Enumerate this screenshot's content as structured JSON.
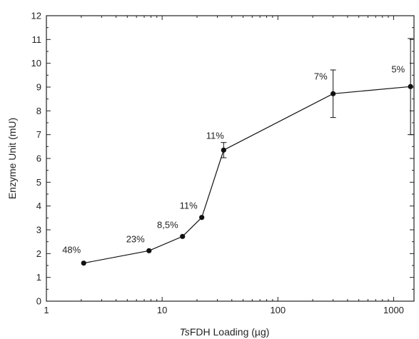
{
  "chart_data": {
    "type": "line",
    "title": "",
    "xlabel_italic": "Ts",
    "xlabel_rest": "FDH Loading (µg)",
    "ylabel": "Enzyme Unit (mU)",
    "x_scale": "log",
    "xlim": [
      1,
      1500
    ],
    "ylim": [
      0,
      12
    ],
    "x_ticks": [
      1,
      10,
      100,
      1000
    ],
    "x_tick_labels": [
      "1",
      "10",
      "100",
      "1000"
    ],
    "y_ticks": [
      0,
      1,
      2,
      3,
      4,
      5,
      6,
      7,
      8,
      9,
      10,
      11,
      12
    ],
    "y_tick_labels": [
      "0",
      "1",
      "2",
      "3",
      "4",
      "5",
      "6",
      "7",
      "8",
      "9",
      "10",
      "11",
      "12"
    ],
    "grid": false,
    "series": [
      {
        "color": "#111111",
        "x": [
          2.1,
          7.7,
          15,
          22,
          34,
          300,
          1400
        ],
        "y": [
          1.6,
          2.12,
          2.72,
          3.52,
          6.35,
          8.72,
          9.02
        ],
        "error": [
          null,
          null,
          null,
          null,
          0.32,
          1.0,
          2.02
        ],
        "labels": [
          "48%",
          "23%",
          "8,5%",
          "11%",
          "11%",
          "7%",
          "5%"
        ]
      }
    ]
  }
}
